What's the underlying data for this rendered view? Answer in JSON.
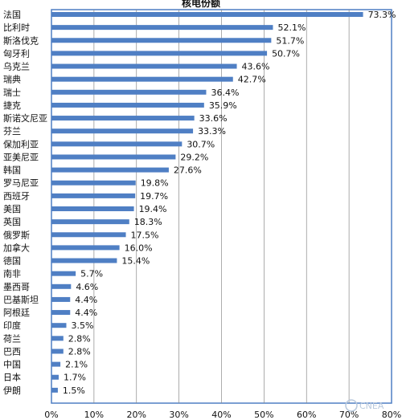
{
  "chart_data": {
    "type": "bar",
    "orientation": "horizontal",
    "title": "核电份额",
    "categories": [
      "法国",
      "比利时",
      "斯洛伐克",
      "匈牙利",
      "乌克兰",
      "瑞典",
      "瑞士",
      "捷克",
      "斯诺文尼亚",
      "芬兰",
      "保加利亚",
      "亚美尼亚",
      "韩国",
      "罗马尼亚",
      "西班牙",
      "美国",
      "英国",
      "俄罗斯",
      "加拿大",
      "德国",
      "南非",
      "墨西哥",
      "巴基斯坦",
      "阿根廷",
      "印度",
      "荷兰",
      "巴西",
      "中国",
      "日本",
      "伊朗"
    ],
    "values": [
      73.3,
      52.1,
      51.7,
      50.7,
      43.6,
      42.7,
      36.4,
      35.9,
      33.6,
      33.3,
      30.7,
      29.2,
      27.6,
      19.8,
      19.7,
      19.4,
      18.3,
      17.5,
      16.0,
      15.4,
      5.7,
      4.6,
      4.4,
      4.4,
      3.5,
      2.8,
      2.8,
      2.1,
      1.7,
      1.5
    ],
    "value_labels": [
      "73.3%",
      "52.1%",
      "51.7%",
      "50.7%",
      "43.6%",
      "42.7%",
      "36.4%",
      "35.9%",
      "33.6%",
      "33.3%",
      "30.7%",
      "29.2%",
      "27.6%",
      "19.8%",
      "19.7%",
      "19.4%",
      "18.3%",
      "17.5%",
      "16.0%",
      "15.4%",
      "5.7%",
      "4.6%",
      "4.4%",
      "4.4%",
      "3.5%",
      "2.8%",
      "2.8%",
      "2.1%",
      "1.7%",
      "1.5%"
    ],
    "xlim": [
      0,
      80
    ],
    "x_ticks": [
      0,
      10,
      20,
      30,
      40,
      50,
      60,
      70,
      80
    ],
    "x_tick_labels": [
      "0%",
      "10%",
      "20%",
      "30%",
      "40%",
      "50%",
      "60%",
      "70%",
      "80%"
    ],
    "grid": "vertical",
    "bar_color": "#4f7fc4",
    "frame_color": "#4f7fc4"
  },
  "watermark": {
    "text": "CNEA"
  }
}
